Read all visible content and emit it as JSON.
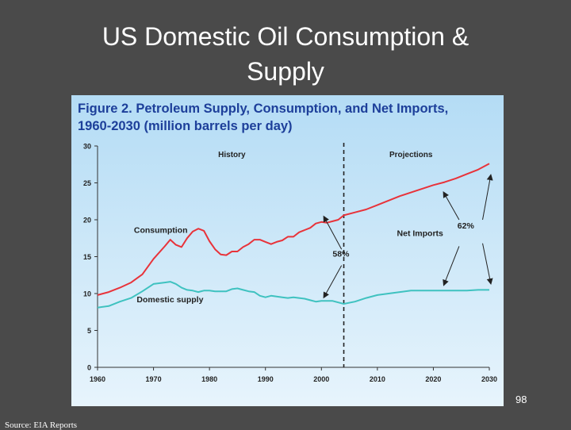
{
  "slide": {
    "title_line1": "US Domestic Oil Consumption &",
    "title_line2": "Supply",
    "page_number": "98",
    "source": "Source: EIA Reports"
  },
  "chart_data": {
    "type": "line",
    "title_line1": "Figure 2.  Petroleum Supply, Consumption, and Net Imports,",
    "title_line2": "1960-2030 (million barrels per day)",
    "xlim": [
      1960,
      2030
    ],
    "ylim": [
      0,
      30
    ],
    "x_ticks": [
      1960,
      1970,
      1980,
      1990,
      2000,
      2010,
      2020,
      2030
    ],
    "y_ticks": [
      0,
      5,
      10,
      15,
      20,
      25,
      30
    ],
    "grid": false,
    "projection_start": 2004,
    "region_labels": {
      "history": "History",
      "projections": "Projections"
    },
    "series": [
      {
        "name": "Consumption",
        "color": "#e8333a",
        "x": [
          1960,
          1962,
          1964,
          1966,
          1968,
          1970,
          1972,
          1973,
          1974,
          1975,
          1976,
          1977,
          1978,
          1979,
          1980,
          1981,
          1982,
          1983,
          1984,
          1985,
          1986,
          1987,
          1988,
          1989,
          1990,
          1991,
          1992,
          1993,
          1994,
          1995,
          1996,
          1997,
          1998,
          1999,
          2000,
          2001,
          2002,
          2003,
          2004,
          2006,
          2008,
          2010,
          2012,
          2014,
          2016,
          2018,
          2020,
          2022,
          2024,
          2026,
          2028,
          2030
        ],
        "y": [
          9.8,
          10.2,
          10.8,
          11.5,
          12.6,
          14.7,
          16.4,
          17.3,
          16.6,
          16.3,
          17.5,
          18.4,
          18.8,
          18.5,
          17.1,
          16.0,
          15.3,
          15.2,
          15.7,
          15.7,
          16.3,
          16.7,
          17.3,
          17.3,
          17.0,
          16.7,
          17.0,
          17.2,
          17.7,
          17.7,
          18.3,
          18.6,
          18.9,
          19.5,
          19.7,
          19.6,
          19.8,
          20.0,
          20.6,
          21.0,
          21.4,
          22.0,
          22.6,
          23.2,
          23.7,
          24.2,
          24.7,
          25.1,
          25.6,
          26.2,
          26.8,
          27.6
        ]
      },
      {
        "name": "Domestic supply",
        "color": "#3fc2c0",
        "x": [
          1960,
          1962,
          1964,
          1966,
          1968,
          1970,
          1972,
          1973,
          1974,
          1975,
          1976,
          1977,
          1978,
          1979,
          1980,
          1981,
          1982,
          1983,
          1984,
          1985,
          1986,
          1987,
          1988,
          1989,
          1990,
          1991,
          1992,
          1993,
          1994,
          1995,
          1996,
          1997,
          1998,
          1999,
          2000,
          2001,
          2002,
          2003,
          2004,
          2006,
          2008,
          2010,
          2012,
          2014,
          2016,
          2018,
          2020,
          2022,
          2024,
          2026,
          2028,
          2030
        ],
        "y": [
          8.1,
          8.3,
          8.9,
          9.4,
          10.3,
          11.3,
          11.5,
          11.6,
          11.3,
          10.8,
          10.5,
          10.4,
          10.2,
          10.4,
          10.4,
          10.3,
          10.3,
          10.3,
          10.6,
          10.7,
          10.5,
          10.3,
          10.2,
          9.7,
          9.5,
          9.7,
          9.6,
          9.5,
          9.4,
          9.5,
          9.4,
          9.3,
          9.1,
          8.9,
          9.0,
          9.0,
          9.0,
          8.8,
          8.6,
          8.9,
          9.4,
          9.8,
          10.0,
          10.2,
          10.4,
          10.4,
          10.4,
          10.4,
          10.4,
          10.4,
          10.5,
          10.5
        ]
      }
    ],
    "annotations": [
      {
        "text": "Consumption",
        "x": 1966.5,
        "y": 18.2
      },
      {
        "text": "Domestic supply",
        "x": 1967,
        "y": 8.8
      },
      {
        "text": "Net Imports",
        "x": 2013.5,
        "y": 17.8
      },
      {
        "text": "58%",
        "x": 2002,
        "y": 15.0
      },
      {
        "text": "62%",
        "x": 2024.3,
        "y": 18.8
      }
    ]
  },
  "colors": {
    "plot_bg_top": "#b4dcf5",
    "plot_bg_bottom": "#e7f4fc",
    "title_blue": "#1d3f9a",
    "consumption_red": "#e8333a",
    "supply_teal": "#3fc2c0"
  }
}
